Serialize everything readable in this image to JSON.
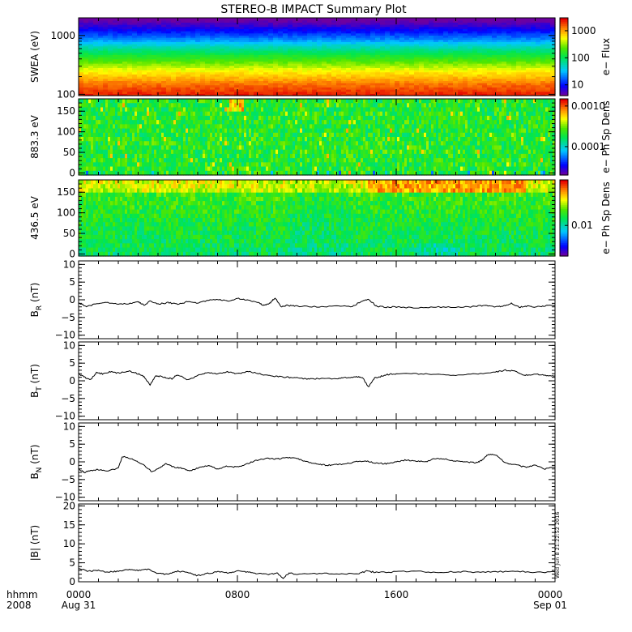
{
  "title": "STEREO-B IMPACT Summary Plot",
  "timestamp_vertical": "Wed Jun 8 21:22:52 2016",
  "x_axis": {
    "row_label_top": "hhmm",
    "row_label_bottom": "2008",
    "ticks": [
      {
        "hour": 0,
        "label": "0000",
        "date": "Aug 31"
      },
      {
        "hour": 8,
        "label": "0800",
        "date": ""
      },
      {
        "hour": 16,
        "label": "1600",
        "date": ""
      },
      {
        "hour": 24,
        "label": "0000",
        "date": "Sep 01"
      }
    ],
    "range_hours": [
      0,
      24
    ]
  },
  "chart_data": [
    {
      "id": "swea",
      "type": "heatmap",
      "ylabel": "SWEA (eV)",
      "yscale": "log",
      "ylim": [
        95,
        2000
      ],
      "yticks": [
        {
          "value": 100,
          "label": "100"
        },
        {
          "value": 1000,
          "label": "1000"
        }
      ],
      "colorbar": {
        "label": "e− Flux",
        "scale": "log",
        "range": [
          4,
          3000
        ],
        "ticks": [
          {
            "value": 10,
            "label": "10"
          },
          {
            "value": 100,
            "label": "100"
          },
          {
            "value": 1000,
            "label": "1000"
          }
        ]
      },
      "description_profile": {
        "energies_eV": [
          100,
          150,
          250,
          400,
          600,
          900,
          1300,
          1800
        ],
        "flux": [
          2500,
          1500,
          600,
          200,
          70,
          20,
          8,
          4
        ]
      }
    },
    {
      "id": "pad883",
      "type": "heatmap",
      "ylabel": "883.3 eV",
      "yscale": "linear",
      "ylim": [
        -5,
        180
      ],
      "yticks": [
        {
          "value": 0,
          "label": "0"
        },
        {
          "value": 50,
          "label": "50"
        },
        {
          "value": 100,
          "label": "100"
        },
        {
          "value": 150,
          "label": "150"
        }
      ],
      "colorbar": {
        "label": "e− Ph Sp Dens",
        "scale": "log",
        "range": [
          2e-05,
          0.0015
        ],
        "ticks": [
          {
            "value": 0.0001,
            "label": "0.0001"
          },
          {
            "value": 0.001,
            "label": "0.0010"
          }
        ]
      }
    },
    {
      "id": "pad436",
      "type": "heatmap",
      "ylabel": "436.5 eV",
      "yscale": "linear",
      "ylim": [
        -5,
        180
      ],
      "yticks": [
        {
          "value": 0,
          "label": "0"
        },
        {
          "value": 50,
          "label": "50"
        },
        {
          "value": 100,
          "label": "100"
        },
        {
          "value": 150,
          "label": "150"
        }
      ],
      "colorbar": {
        "label": "e− Ph Sp Dens",
        "scale": "log",
        "range": [
          0.003,
          0.06
        ],
        "ticks": [
          {
            "value": 0.01,
            "label": "0.01"
          }
        ]
      }
    },
    {
      "id": "br",
      "type": "line",
      "ylabel": "B",
      "ylabel_sub": "R",
      "ylabel_unit": " (nT)",
      "ylim": [
        -11,
        11
      ],
      "yticks": [
        {
          "value": -10,
          "label": "−10"
        },
        {
          "value": -5,
          "label": "−5"
        },
        {
          "value": 0,
          "label": "0"
        },
        {
          "value": 5,
          "label": "5"
        },
        {
          "value": 10,
          "label": "10"
        }
      ],
      "x": [
        0,
        0.4,
        0.9,
        1.4,
        2.0,
        2.6,
        3.0,
        3.3,
        3.6,
        4.0,
        4.5,
        5.0,
        5.5,
        6.0,
        6.5,
        7.0,
        7.5,
        8.0,
        8.5,
        9.0,
        9.3,
        9.6,
        9.9,
        10.2,
        10.5,
        11.0,
        12.0,
        13.0,
        13.8,
        14.2,
        14.6,
        15.0,
        15.5,
        16.0,
        17.0,
        18.0,
        19.0,
        20.0,
        20.5,
        21.0,
        21.4,
        21.8,
        22.2,
        22.6,
        23.0,
        23.5,
        24.0
      ],
      "y": [
        -1.0,
        -1.8,
        -1.2,
        -0.8,
        -1.3,
        -1.0,
        -0.6,
        -1.5,
        -0.4,
        -1.2,
        -0.8,
        -1.3,
        -0.5,
        -0.9,
        -0.2,
        0.2,
        -0.4,
        0.4,
        0.0,
        -0.8,
        -1.5,
        -1.2,
        0.6,
        -2.0,
        -1.6,
        -1.8,
        -2.0,
        -1.8,
        -1.9,
        -0.5,
        0.2,
        -1.8,
        -2.1,
        -2.0,
        -2.3,
        -2.0,
        -2.2,
        -1.9,
        -1.5,
        -2.0,
        -1.8,
        -1.0,
        -2.1,
        -1.8,
        -2.0,
        -1.7,
        -1.5
      ]
    },
    {
      "id": "bt",
      "type": "line",
      "ylabel": "B",
      "ylabel_sub": "T",
      "ylabel_unit": " (nT)",
      "ylim": [
        -11,
        11
      ],
      "yticks": [
        {
          "value": -10,
          "label": "−10"
        },
        {
          "value": -5,
          "label": "−5"
        },
        {
          "value": 0,
          "label": "0"
        },
        {
          "value": 5,
          "label": "5"
        },
        {
          "value": 10,
          "label": "10"
        }
      ],
      "x": [
        0,
        0.3,
        0.6,
        0.9,
        1.2,
        1.6,
        2.0,
        2.5,
        3.0,
        3.3,
        3.6,
        3.9,
        4.3,
        4.7,
        5.0,
        5.5,
        6.0,
        6.5,
        7.0,
        7.5,
        8.0,
        8.5,
        9.0,
        9.5,
        10.0,
        10.5,
        11.0,
        11.5,
        12.0,
        13.0,
        13.5,
        14.0,
        14.3,
        14.6,
        14.9,
        15.2,
        15.6,
        16.0,
        17.0,
        18.0,
        19.0,
        20.0,
        21.0,
        21.5,
        22.0,
        22.5,
        23.0,
        23.5,
        24.0
      ],
      "y": [
        2.0,
        1.0,
        0.3,
        2.3,
        2.0,
        2.6,
        2.2,
        2.8,
        2.0,
        1.2,
        -1.2,
        1.5,
        1.0,
        0.6,
        1.8,
        0.2,
        1.5,
        2.4,
        2.0,
        2.5,
        2.0,
        2.6,
        2.2,
        1.5,
        1.2,
        1.0,
        0.8,
        0.5,
        0.6,
        0.6,
        0.9,
        1.2,
        1.0,
        -1.8,
        0.8,
        1.2,
        1.8,
        2.0,
        2.0,
        1.8,
        1.6,
        2.0,
        2.5,
        3.0,
        2.7,
        1.5,
        2.0,
        1.5,
        1.4
      ]
    },
    {
      "id": "bn",
      "type": "line",
      "ylabel": "B",
      "ylabel_sub": "N",
      "ylabel_unit": " (nT)",
      "ylim": [
        -11,
        11
      ],
      "yticks": [
        {
          "value": -10,
          "label": "−10"
        },
        {
          "value": -5,
          "label": "−5"
        },
        {
          "value": 0,
          "label": "0"
        },
        {
          "value": 5,
          "label": "5"
        },
        {
          "value": 10,
          "label": "10"
        }
      ],
      "x": [
        0,
        0.3,
        0.6,
        1.0,
        1.5,
        2.0,
        2.2,
        2.6,
        3.0,
        3.3,
        3.7,
        4.0,
        4.4,
        4.8,
        5.2,
        5.6,
        6.0,
        6.5,
        7.0,
        7.5,
        8.0,
        8.5,
        9.0,
        9.5,
        10.0,
        10.5,
        11.0,
        11.5,
        12.0,
        12.5,
        13.0,
        13.5,
        14.0,
        14.5,
        15.0,
        15.5,
        16.0,
        16.5,
        17.0,
        17.5,
        18.0,
        18.5,
        19.0,
        19.5,
        20.0,
        20.3,
        20.6,
        21.0,
        21.5,
        22.0,
        22.5,
        23.0,
        23.5,
        24.0
      ],
      "y": [
        -2.0,
        -3.0,
        -2.5,
        -2.2,
        -2.5,
        -1.8,
        1.5,
        1.0,
        0.0,
        -1.0,
        -2.8,
        -2.0,
        -0.5,
        -1.5,
        -1.8,
        -2.5,
        -1.8,
        -1.0,
        -2.0,
        -1.2,
        -1.5,
        -0.5,
        0.5,
        1.0,
        0.8,
        1.2,
        1.0,
        0.0,
        -0.5,
        -1.0,
        -0.8,
        -0.5,
        0.0,
        0.2,
        -0.4,
        -0.5,
        0.0,
        0.5,
        0.3,
        0.0,
        1.0,
        0.8,
        0.2,
        0.0,
        -0.2,
        0.3,
        2.0,
        2.0,
        -0.3,
        -0.8,
        -1.5,
        -1.0,
        -2.0,
        -1.5
      ]
    },
    {
      "id": "bmag",
      "type": "line",
      "ylabel": "|B| (nT)",
      "ylim": [
        0,
        20.5
      ],
      "yticks": [
        {
          "value": 0,
          "label": "0"
        },
        {
          "value": 5,
          "label": "5"
        },
        {
          "value": 10,
          "label": "10"
        },
        {
          "value": 15,
          "label": "15"
        },
        {
          "value": 20,
          "label": "20"
        }
      ],
      "x": [
        0,
        0.5,
        1.0,
        1.5,
        2.0,
        2.5,
        3.0,
        3.5,
        4.0,
        4.5,
        5.0,
        5.5,
        6.0,
        6.5,
        7.0,
        7.5,
        8.0,
        8.5,
        9.0,
        9.5,
        10.0,
        10.3,
        10.6,
        11.0,
        12.0,
        13.0,
        14.0,
        14.5,
        15.0,
        16.0,
        17.0,
        18.0,
        19.0,
        20.0,
        21.0,
        22.0,
        23.0,
        24.0
      ],
      "y": [
        3.5,
        2.8,
        3.0,
        2.5,
        2.8,
        3.2,
        3.0,
        3.3,
        2.2,
        2.0,
        2.8,
        2.4,
        1.6,
        2.2,
        2.6,
        2.4,
        2.8,
        2.6,
        2.2,
        2.0,
        2.2,
        1.0,
        2.3,
        2.0,
        2.2,
        2.2,
        2.0,
        2.8,
        2.5,
        2.6,
        2.8,
        2.5,
        2.7,
        2.5,
        2.6,
        2.8,
        2.5,
        2.6
      ]
    }
  ]
}
